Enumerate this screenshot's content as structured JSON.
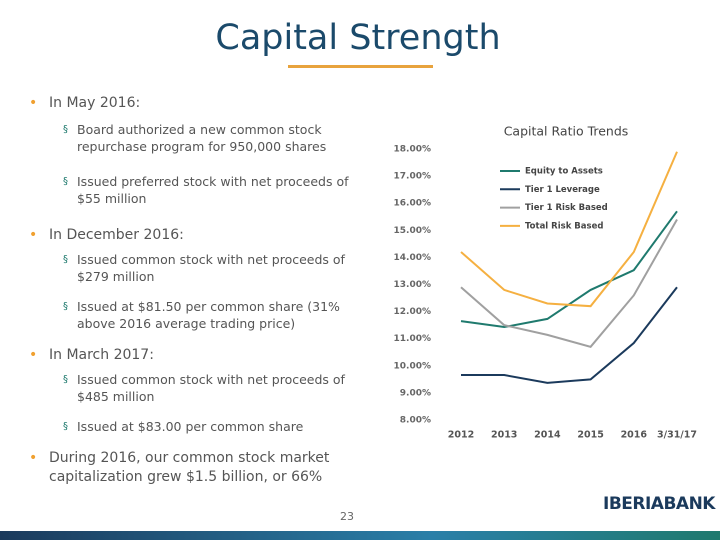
{
  "header": {
    "title": "Capital Strength"
  },
  "bullets": [
    {
      "text": "In May 2016:",
      "items": [
        "Board authorized a new common stock repurchase program for 950,000 shares",
        "Issued preferred stock with net proceeds of $55 million"
      ]
    },
    {
      "text": "In December 2016:",
      "items": [
        "Issued common stock with net proceeds of $279 million",
        "Issued at $81.50 per common share (31% above 2016 average trading price)"
      ]
    },
    {
      "text": "In March 2017:",
      "items": [
        "Issued common stock with net proceeds of $485 million",
        "Issued at $83.00 per common share"
      ]
    },
    {
      "text": "During 2016, our common stock market capitalization grew $1.5 billion, or 66%",
      "items": []
    }
  ],
  "page_number": "23",
  "logo": "IBERIABANK",
  "chart_data": {
    "type": "line",
    "title": "Capital Ratio Trends",
    "categories": [
      "2012",
      "2013",
      "2014",
      "2015",
      "2016",
      "3/31/17"
    ],
    "series": [
      {
        "name": "Equity to Assets",
        "color": "#1f7a6e",
        "values": [
          11.65,
          11.43,
          11.73,
          12.8,
          13.53,
          15.7
        ]
      },
      {
        "name": "Tier 1 Leverage",
        "color": "#1b3a5c",
        "values": [
          9.66,
          9.66,
          9.37,
          9.5,
          10.84,
          12.9
        ]
      },
      {
        "name": "Tier 1 Risk Based",
        "color": "#a0a0a0",
        "values": [
          12.9,
          11.5,
          11.14,
          10.7,
          12.6,
          15.4
        ]
      },
      {
        "name": "Total Risk Based",
        "color": "#f5b041",
        "values": [
          14.2,
          12.8,
          12.3,
          12.2,
          14.2,
          17.9
        ]
      }
    ],
    "ylim": [
      8,
      18
    ],
    "yticks": [
      {
        "value": 8,
        "label": "8.00%"
      },
      {
        "value": 9,
        "label": "9.00%"
      },
      {
        "value": 10,
        "label": "10.00%"
      },
      {
        "value": 11,
        "label": "11.00%"
      },
      {
        "value": 12,
        "label": "12.00%"
      },
      {
        "value": 13,
        "label": "13.00%"
      },
      {
        "value": 14,
        "label": "14.00%"
      },
      {
        "value": 15,
        "label": "15.00%"
      },
      {
        "value": 16,
        "label": "16.00%"
      },
      {
        "value": 17,
        "label": "17.00%"
      },
      {
        "value": 18,
        "label": "18.00%"
      }
    ],
    "legend": "upper-left"
  }
}
